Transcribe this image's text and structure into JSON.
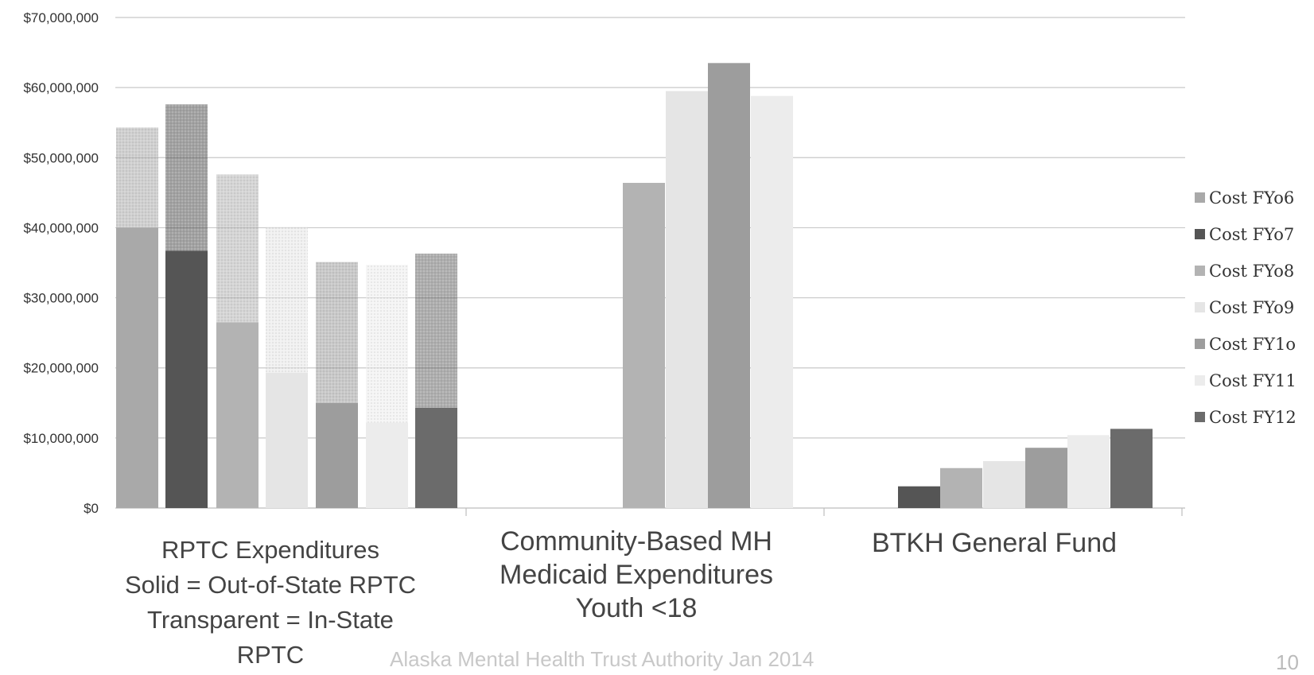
{
  "chart_data": {
    "type": "bar",
    "ylim": [
      0,
      70000000
    ],
    "y_ticks": [
      "$0",
      "$10,000,000",
      "$20,000,000",
      "$30,000,000",
      "$40,000,000",
      "$50,000,000",
      "$60,000,000",
      "$70,000,000"
    ],
    "grid": true,
    "legend_position": "right",
    "categories": [
      "RPTC Expenditures\nSolid = Out-of-State RPTC\nTransparent = In-State\nRPTC",
      "Community-Based MH\nMedicaid Expenditures\nYouth <18",
      "BTKH General Fund"
    ],
    "series": [
      {
        "name": "Cost FY06",
        "color": "#a9a9a9",
        "stacked_total": 54300000,
        "values": [
          40000000,
          null,
          null
        ]
      },
      {
        "name": "Cost FY07",
        "color": "#555555",
        "stacked_total": 57600000,
        "values": [
          36700000,
          null,
          3100000
        ]
      },
      {
        "name": "Cost FY08",
        "color": "#b3b3b3",
        "stacked_total": 47600000,
        "values": [
          26500000,
          46400000,
          5700000
        ]
      },
      {
        "name": "Cost FY09",
        "color": "#e5e5e5",
        "stacked_total": 40100000,
        "values": [
          19300000,
          59500000,
          6700000
        ]
      },
      {
        "name": "Cost FY10",
        "color": "#9d9d9d",
        "stacked_total": 35100000,
        "values": [
          15000000,
          63500000,
          8600000
        ]
      },
      {
        "name": "Cost FY11",
        "color": "#ececec",
        "stacked_total": 34700000,
        "values": [
          12200000,
          58800000,
          10400000
        ]
      },
      {
        "name": "Cost FY12",
        "color": "#6b6b6b",
        "stacked_total": 36300000,
        "values": [
          14300000,
          null,
          11300000
        ]
      }
    ]
  },
  "legend_labels": [
    "Cost FYo6",
    "Cost FYo7",
    "Cost FYo8",
    "Cost FYo9",
    "Cost FY1o",
    "Cost FY11",
    "Cost FY12"
  ],
  "category_labels": {
    "rptc": "RPTC Expenditures\nSolid = Out-of-State RPTC\nTransparent = In-State\nRPTC",
    "community": "Community-Based MH\nMedicaid Expenditures\nYouth <18",
    "btkh": "BTKH General Fund"
  },
  "footer": "Alaska Mental Health Trust Authority Jan 2014",
  "page_number": "10"
}
